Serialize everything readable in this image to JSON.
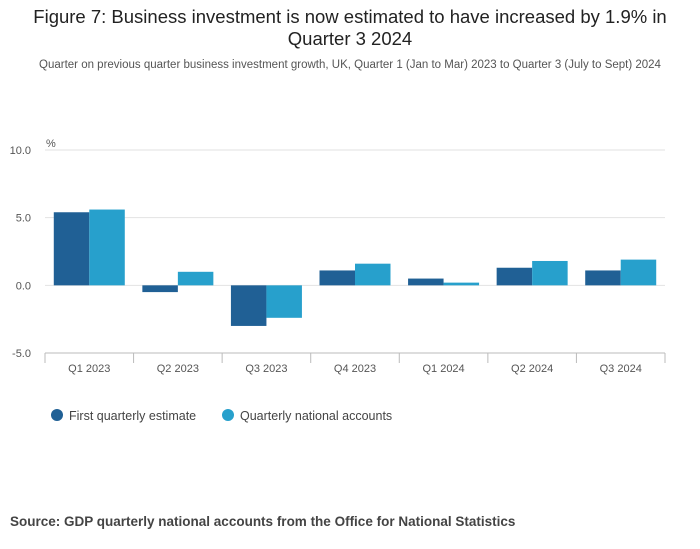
{
  "title": "Figure 7: Business investment is now estimated to have increased by 1.9% in Quarter 3 2024",
  "subtitle": "Quarter on previous quarter business investment growth, UK, Quarter 1 (Jan to Mar) 2023 to Quarter 3 (July to Sept) 2024",
  "source": "Source: GDP quarterly national accounts from the Office for National Statistics",
  "colors": {
    "first_estimate": "#206095",
    "national_accounts": "#27A0CC",
    "grid": "#e2e2e2",
    "axis": "#bbbbbb"
  },
  "chart_data": {
    "type": "bar",
    "ylabel": "%",
    "ylim": [
      -5,
      10
    ],
    "yticks": [
      "10.0",
      "5.0",
      "0.0",
      "-5.0"
    ],
    "ytick_values": [
      10,
      5,
      0,
      -5
    ],
    "categories": [
      "Q1 2023",
      "Q2 2023",
      "Q3 2023",
      "Q4 2023",
      "Q1 2024",
      "Q2 2024",
      "Q3 2024"
    ],
    "series": [
      {
        "name": "First quarterly estimate",
        "values": [
          5.4,
          -0.5,
          -3.0,
          1.1,
          0.5,
          1.3,
          1.1
        ]
      },
      {
        "name": "Quarterly national accounts",
        "values": [
          5.6,
          1.0,
          -2.4,
          1.6,
          0.2,
          1.8,
          1.9
        ]
      }
    ],
    "legend_position": "bottom-left",
    "grid": true
  }
}
